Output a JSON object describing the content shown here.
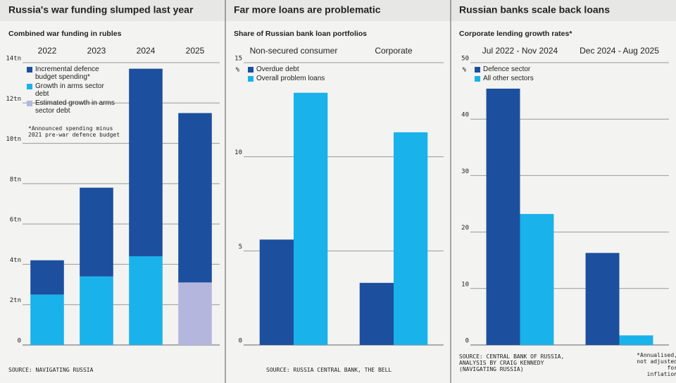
{
  "chart_data": [
    {
      "type": "stacked_bar",
      "title": "Russia's war funding slumped last year",
      "subtitle": "Combined war funding in rubles",
      "categories": [
        "2022",
        "2023",
        "2024",
        "2025"
      ],
      "series": [
        {
          "name": "Incremental defence budget spending*",
          "color": "#1c4f9e",
          "values": [
            1.7,
            4.4,
            9.3,
            8.4
          ]
        },
        {
          "name": "Growth in arms sector debt",
          "color": "#1ab2ea",
          "values": [
            2.5,
            3.4,
            4.4,
            null
          ]
        },
        {
          "name": "Estimated growth in arms sector debt",
          "color": "#b4b6de",
          "values": [
            null,
            null,
            null,
            3.1
          ]
        }
      ],
      "ylim": [
        0,
        14
      ],
      "yticks": [
        0,
        {
          "value": 2,
          "label": "2tn"
        },
        {
          "value": 4,
          "label": "4tn"
        },
        {
          "value": 6,
          "label": "6tn"
        },
        {
          "value": 8,
          "label": "8tn"
        },
        {
          "value": 10,
          "label": "10tn"
        },
        {
          "value": 12,
          "label": "12tn"
        },
        {
          "value": 14,
          "label": "14tn"
        }
      ],
      "grid": true,
      "note": "*Announced spending minus 2021 pre-war defence budget",
      "source": "SOURCE: NAVIGATING RUSSIA"
    },
    {
      "type": "bar",
      "title": "Far more loans are problematic",
      "subtitle": "Share of Russian bank loan portfolios",
      "categories": [
        "Non-secured consumer",
        "Corporate"
      ],
      "series": [
        {
          "name": "Overdue debt",
          "color": "#1c4f9e",
          "values": [
            5.6,
            3.3
          ]
        },
        {
          "name": "Overall problem loans",
          "color": "#1ab2ea",
          "values": [
            13.4,
            11.3
          ]
        }
      ],
      "ylim": [
        0,
        15
      ],
      "yticks": [
        0,
        5,
        10,
        15
      ],
      "unit": "%",
      "grid": true,
      "source": "SOURCE: RUSSIA CENTRAL BANK, THE BELL"
    },
    {
      "type": "bar",
      "title": "Russian banks scale back loans",
      "subtitle": "Corporate lending growth rates*",
      "categories": [
        "Jul 2022 - Nov 2024",
        "Dec 2024 - Aug 2025"
      ],
      "series": [
        {
          "name": "Defence sector",
          "color": "#1c4f9e",
          "values": [
            45.4,
            16.3
          ]
        },
        {
          "name": "All other sectors",
          "color": "#1ab2ea",
          "values": [
            23.2,
            1.7
          ]
        }
      ],
      "ylim": [
        0,
        50
      ],
      "yticks": [
        0,
        10,
        20,
        30,
        40,
        50
      ],
      "unit": "%",
      "grid": true,
      "note": "*Annualised, not adjusted for inflation",
      "source": "SOURCE: CENTRAL BANK OF RUSSIA, ANALYSIS BY CRAIG KENNEDY (NAVIGATING RUSSIA)"
    }
  ]
}
